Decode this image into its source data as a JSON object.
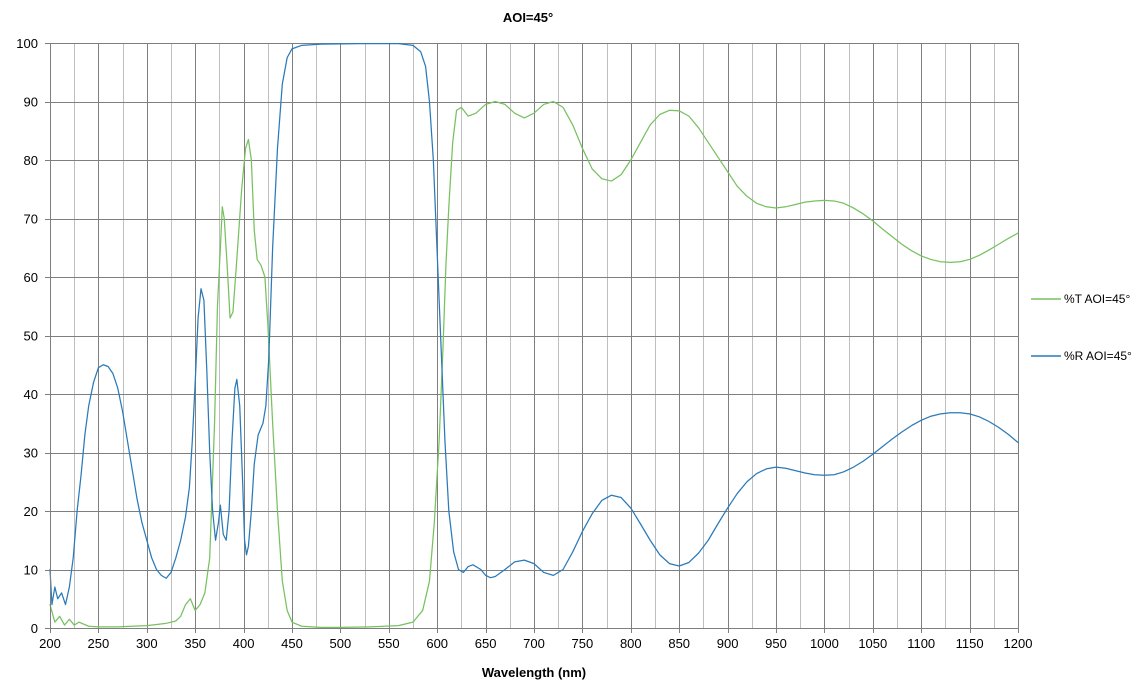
{
  "chart_data": {
    "type": "line",
    "title": "AOI=45°",
    "xlabel": "Wavelength (nm)",
    "ylabel": "",
    "xlim": [
      200,
      1200
    ],
    "ylim": [
      0,
      100
    ],
    "x_ticks": [
      200,
      250,
      300,
      350,
      400,
      450,
      500,
      550,
      600,
      650,
      700,
      750,
      800,
      850,
      900,
      950,
      1000,
      1050,
      1100,
      1150,
      1200
    ],
    "y_ticks": [
      0,
      10,
      20,
      30,
      40,
      50,
      60,
      70,
      80,
      90,
      100
    ],
    "x_minor_step": 25,
    "grid": true,
    "legend_position": "right",
    "series": [
      {
        "name": "%T AOI=45°",
        "color": "#77c160",
        "points": [
          [
            200,
            4
          ],
          [
            205,
            1
          ],
          [
            210,
            2
          ],
          [
            215,
            0.5
          ],
          [
            220,
            1.5
          ],
          [
            225,
            0.5
          ],
          [
            230,
            1
          ],
          [
            240,
            0.3
          ],
          [
            250,
            0.2
          ],
          [
            270,
            0.2
          ],
          [
            300,
            0.4
          ],
          [
            320,
            0.8
          ],
          [
            330,
            1.2
          ],
          [
            335,
            2
          ],
          [
            340,
            4
          ],
          [
            345,
            5
          ],
          [
            350,
            3
          ],
          [
            355,
            4
          ],
          [
            360,
            6
          ],
          [
            365,
            12
          ],
          [
            370,
            35
          ],
          [
            373,
            55
          ],
          [
            376,
            65
          ],
          [
            378,
            72
          ],
          [
            380,
            70
          ],
          [
            383,
            62
          ],
          [
            386,
            53
          ],
          [
            389,
            54
          ],
          [
            393,
            63
          ],
          [
            398,
            75
          ],
          [
            402,
            82
          ],
          [
            405,
            83.5
          ],
          [
            408,
            80
          ],
          [
            411,
            68
          ],
          [
            414,
            63
          ],
          [
            418,
            62
          ],
          [
            422,
            60
          ],
          [
            425,
            52
          ],
          [
            430,
            35
          ],
          [
            435,
            20
          ],
          [
            440,
            8
          ],
          [
            445,
            3
          ],
          [
            450,
            1
          ],
          [
            460,
            0.3
          ],
          [
            480,
            0.1
          ],
          [
            500,
            0.1
          ],
          [
            530,
            0.2
          ],
          [
            560,
            0.4
          ],
          [
            575,
            1
          ],
          [
            585,
            3
          ],
          [
            592,
            8
          ],
          [
            597,
            18
          ],
          [
            602,
            32
          ],
          [
            606,
            48
          ],
          [
            609,
            62
          ],
          [
            612,
            72
          ],
          [
            616,
            83
          ],
          [
            620,
            88.5
          ],
          [
            625,
            89
          ],
          [
            632,
            87.5
          ],
          [
            640,
            88
          ],
          [
            650,
            89.5
          ],
          [
            660,
            90
          ],
          [
            670,
            89.5
          ],
          [
            680,
            88
          ],
          [
            690,
            87.2
          ],
          [
            700,
            88
          ],
          [
            710,
            89.5
          ],
          [
            720,
            90
          ],
          [
            730,
            89
          ],
          [
            740,
            86
          ],
          [
            750,
            82
          ],
          [
            760,
            78.5
          ],
          [
            770,
            76.8
          ],
          [
            780,
            76.4
          ],
          [
            790,
            77.5
          ],
          [
            800,
            80
          ],
          [
            810,
            83
          ],
          [
            820,
            86
          ],
          [
            830,
            87.8
          ],
          [
            840,
            88.5
          ],
          [
            850,
            88.4
          ],
          [
            860,
            87.5
          ],
          [
            870,
            85.5
          ],
          [
            880,
            83
          ],
          [
            890,
            80.5
          ],
          [
            900,
            78
          ],
          [
            910,
            75.5
          ],
          [
            920,
            73.8
          ],
          [
            930,
            72.6
          ],
          [
            940,
            72
          ],
          [
            950,
            71.8
          ],
          [
            960,
            72
          ],
          [
            970,
            72.4
          ],
          [
            980,
            72.8
          ],
          [
            990,
            73
          ],
          [
            1000,
            73.1
          ],
          [
            1010,
            73
          ],
          [
            1020,
            72.6
          ],
          [
            1030,
            71.8
          ],
          [
            1040,
            70.8
          ],
          [
            1050,
            69.6
          ],
          [
            1060,
            68.2
          ],
          [
            1070,
            66.9
          ],
          [
            1080,
            65.6
          ],
          [
            1090,
            64.5
          ],
          [
            1100,
            63.6
          ],
          [
            1110,
            63
          ],
          [
            1120,
            62.6
          ],
          [
            1130,
            62.5
          ],
          [
            1140,
            62.6
          ],
          [
            1150,
            63
          ],
          [
            1160,
            63.7
          ],
          [
            1170,
            64.6
          ],
          [
            1180,
            65.6
          ],
          [
            1190,
            66.6
          ],
          [
            1200,
            67.5
          ]
        ]
      },
      {
        "name": "%R AOI=45°",
        "color": "#2a7ab9",
        "points": [
          [
            200,
            10
          ],
          [
            202,
            4
          ],
          [
            205,
            7
          ],
          [
            208,
            5
          ],
          [
            212,
            6
          ],
          [
            216,
            4
          ],
          [
            220,
            7
          ],
          [
            224,
            12
          ],
          [
            228,
            20
          ],
          [
            232,
            26
          ],
          [
            236,
            33
          ],
          [
            240,
            38
          ],
          [
            245,
            42
          ],
          [
            250,
            44.5
          ],
          [
            255,
            45
          ],
          [
            260,
            44.7
          ],
          [
            265,
            43.5
          ],
          [
            270,
            41
          ],
          [
            275,
            37
          ],
          [
            280,
            32
          ],
          [
            285,
            27
          ],
          [
            290,
            22
          ],
          [
            295,
            18
          ],
          [
            300,
            15
          ],
          [
            305,
            12
          ],
          [
            310,
            10
          ],
          [
            315,
            9
          ],
          [
            320,
            8.5
          ],
          [
            325,
            9.5
          ],
          [
            330,
            12
          ],
          [
            335,
            15
          ],
          [
            340,
            19
          ],
          [
            344,
            24
          ],
          [
            347,
            32
          ],
          [
            350,
            42
          ],
          [
            353,
            53
          ],
          [
            356,
            58
          ],
          [
            359,
            56
          ],
          [
            362,
            44
          ],
          [
            365,
            30
          ],
          [
            368,
            20
          ],
          [
            371,
            15
          ],
          [
            374,
            18
          ],
          [
            376,
            21
          ],
          [
            379,
            16
          ],
          [
            382,
            15
          ],
          [
            385,
            20
          ],
          [
            388,
            32
          ],
          [
            391,
            41
          ],
          [
            393,
            42.5
          ],
          [
            396,
            38
          ],
          [
            399,
            25
          ],
          [
            401,
            15
          ],
          [
            403,
            12.5
          ],
          [
            405,
            14
          ],
          [
            408,
            20
          ],
          [
            411,
            28
          ],
          [
            415,
            33
          ],
          [
            420,
            35
          ],
          [
            423,
            38
          ],
          [
            426,
            46
          ],
          [
            430,
            65
          ],
          [
            435,
            82
          ],
          [
            440,
            93
          ],
          [
            445,
            97.5
          ],
          [
            450,
            99
          ],
          [
            460,
            99.6
          ],
          [
            480,
            99.8
          ],
          [
            520,
            99.9
          ],
          [
            560,
            99.9
          ],
          [
            575,
            99.6
          ],
          [
            583,
            98.5
          ],
          [
            588,
            96
          ],
          [
            592,
            90
          ],
          [
            596,
            80
          ],
          [
            600,
            64
          ],
          [
            604,
            48
          ],
          [
            608,
            32
          ],
          [
            612,
            20
          ],
          [
            617,
            13
          ],
          [
            622,
            10
          ],
          [
            627,
            9.5
          ],
          [
            632,
            10.5
          ],
          [
            637,
            10.8
          ],
          [
            645,
            10
          ],
          [
            650,
            9
          ],
          [
            655,
            8.6
          ],
          [
            660,
            8.8
          ],
          [
            670,
            10
          ],
          [
            680,
            11.3
          ],
          [
            690,
            11.6
          ],
          [
            700,
            11
          ],
          [
            710,
            9.5
          ],
          [
            720,
            9
          ],
          [
            730,
            10
          ],
          [
            740,
            13
          ],
          [
            750,
            16.5
          ],
          [
            760,
            19.5
          ],
          [
            770,
            21.8
          ],
          [
            780,
            22.7
          ],
          [
            790,
            22.3
          ],
          [
            800,
            20.5
          ],
          [
            810,
            17.8
          ],
          [
            820,
            15
          ],
          [
            830,
            12.5
          ],
          [
            840,
            11
          ],
          [
            850,
            10.6
          ],
          [
            860,
            11.2
          ],
          [
            870,
            12.8
          ],
          [
            880,
            15
          ],
          [
            890,
            17.8
          ],
          [
            900,
            20.5
          ],
          [
            910,
            23
          ],
          [
            920,
            25
          ],
          [
            930,
            26.4
          ],
          [
            940,
            27.2
          ],
          [
            950,
            27.5
          ],
          [
            960,
            27.3
          ],
          [
            970,
            26.9
          ],
          [
            980,
            26.5
          ],
          [
            990,
            26.2
          ],
          [
            1000,
            26.1
          ],
          [
            1010,
            26.2
          ],
          [
            1020,
            26.7
          ],
          [
            1030,
            27.5
          ],
          [
            1040,
            28.5
          ],
          [
            1050,
            29.7
          ],
          [
            1060,
            31
          ],
          [
            1070,
            32.3
          ],
          [
            1080,
            33.5
          ],
          [
            1090,
            34.6
          ],
          [
            1100,
            35.5
          ],
          [
            1110,
            36.2
          ],
          [
            1120,
            36.6
          ],
          [
            1130,
            36.8
          ],
          [
            1140,
            36.8
          ],
          [
            1150,
            36.6
          ],
          [
            1160,
            36.1
          ],
          [
            1170,
            35.3
          ],
          [
            1180,
            34.3
          ],
          [
            1190,
            33.1
          ],
          [
            1200,
            31.7
          ]
        ]
      }
    ]
  }
}
